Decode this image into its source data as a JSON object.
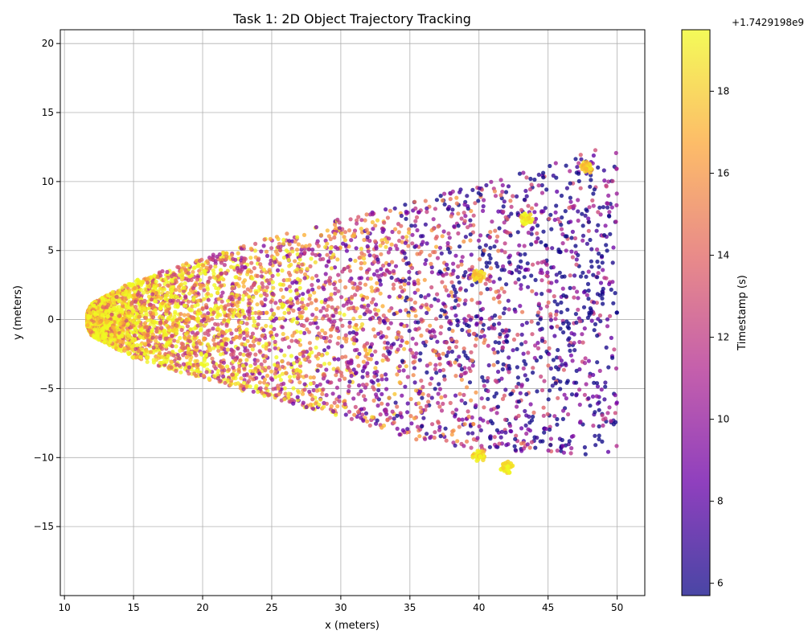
{
  "chart_data": {
    "type": "scatter",
    "title": "Task 1: 2D Object Trajectory Tracking",
    "xlabel": "x (meters)",
    "ylabel": "y (meters)",
    "xlim": [
      9.7,
      52
    ],
    "ylim": [
      -20,
      21
    ],
    "x_ticks": [
      10,
      15,
      20,
      25,
      30,
      35,
      40,
      45,
      50
    ],
    "y_ticks": [
      -15,
      -10,
      -5,
      0,
      5,
      10,
      15,
      20
    ],
    "grid": true,
    "legend": "none",
    "colorbar": {
      "label": "Timestamp (s)",
      "offset_text": "+1.7429198e9",
      "range": [
        5.7,
        19.5
      ],
      "ticks": [
        6,
        8,
        10,
        12,
        14,
        16,
        18
      ],
      "colormap": "plasma",
      "stops": [
        "#0d0887",
        "#6a00a8",
        "#b12a90",
        "#e16462",
        "#fca636",
        "#f0f921"
      ]
    },
    "point_cloud": {
      "description_of_shape": "parabolic fan opening to the right",
      "vertex": [
        11.6,
        0
      ],
      "x_max": 50,
      "upper_envelope": [
        [
          12,
          1.2
        ],
        [
          15,
          2.8
        ],
        [
          20,
          4.5
        ],
        [
          25,
          6.0
        ],
        [
          30,
          7.3
        ],
        [
          35,
          8.6
        ],
        [
          40,
          9.8
        ],
        [
          45,
          11.2
        ],
        [
          48,
          12.3
        ]
      ],
      "lower_envelope": [
        [
          12,
          -1.2
        ],
        [
          15,
          -2.8
        ],
        [
          20,
          -4.3
        ],
        [
          25,
          -5.8
        ],
        [
          30,
          -7.0
        ],
        [
          35,
          -8.6
        ],
        [
          40,
          -9.5
        ],
        [
          45,
          -9.8
        ],
        [
          47,
          -9.8
        ]
      ],
      "color_trend": "near vertex newest (yellow), spreading outward to older (purple)"
    },
    "clusters": [
      {
        "x": 43.5,
        "y": 7.3,
        "t": 19.0
      },
      {
        "x": 42.0,
        "y": -10.7,
        "t": 19.0
      },
      {
        "x": 40.0,
        "y": -9.9,
        "t": 18.5
      },
      {
        "x": 47.8,
        "y": 11.0,
        "t": 18.0
      },
      {
        "x": 40.0,
        "y": 3.2,
        "t": 18.0
      }
    ]
  }
}
